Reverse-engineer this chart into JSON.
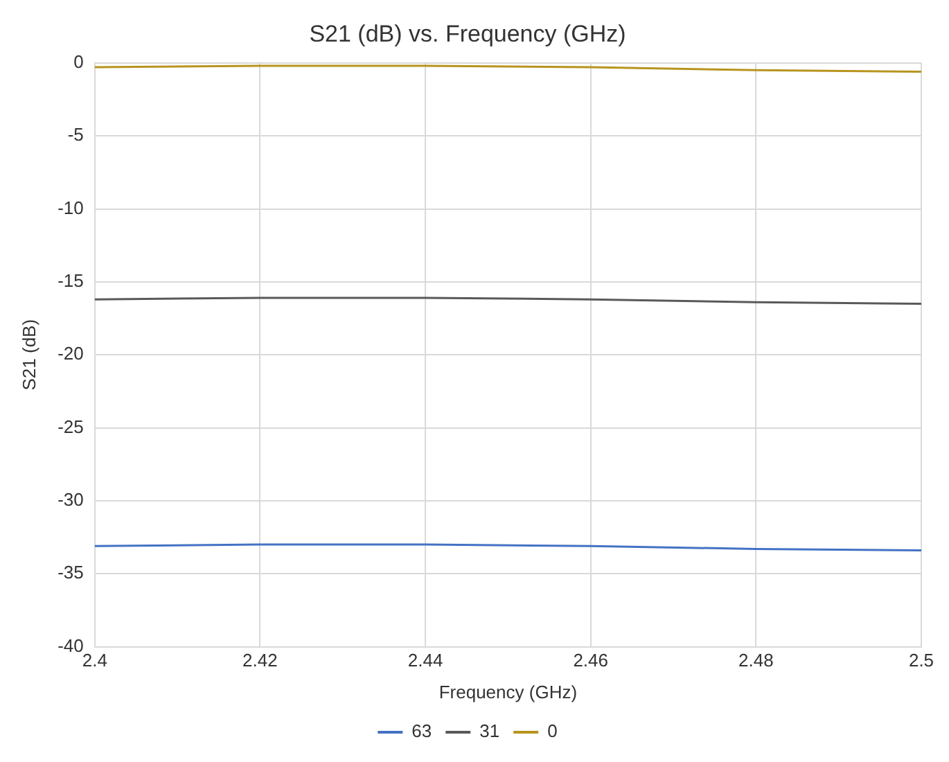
{
  "chart_data": {
    "type": "line",
    "title": "S21 (dB) vs. Frequency (GHz)",
    "xlabel": "Frequency (GHz)",
    "ylabel": "S21 (dB)",
    "x": [
      2.4,
      2.42,
      2.44,
      2.46,
      2.48,
      2.5
    ],
    "series": [
      {
        "name": "63",
        "color": "#4472c4",
        "values": [
          -33.1,
          -33.0,
          -33.0,
          -33.1,
          -33.3,
          -33.4
        ]
      },
      {
        "name": "31",
        "color": "#595959",
        "values": [
          -16.2,
          -16.1,
          -16.1,
          -16.2,
          -16.4,
          -16.5
        ]
      },
      {
        "name": "0",
        "color": "#b8941e",
        "values": [
          -0.3,
          -0.2,
          -0.2,
          -0.3,
          -0.5,
          -0.6
        ]
      }
    ],
    "xlim": [
      2.4,
      2.5
    ],
    "xticks": [
      2.4,
      2.42,
      2.44,
      2.46,
      2.48,
      2.5
    ],
    "ylim": [
      -40,
      0
    ],
    "yticks": [
      -40,
      -35,
      -30,
      -25,
      -20,
      -15,
      -10,
      -5,
      0
    ],
    "grid": true,
    "legend": "bottom",
    "marker": "none",
    "line_style": "solid"
  }
}
